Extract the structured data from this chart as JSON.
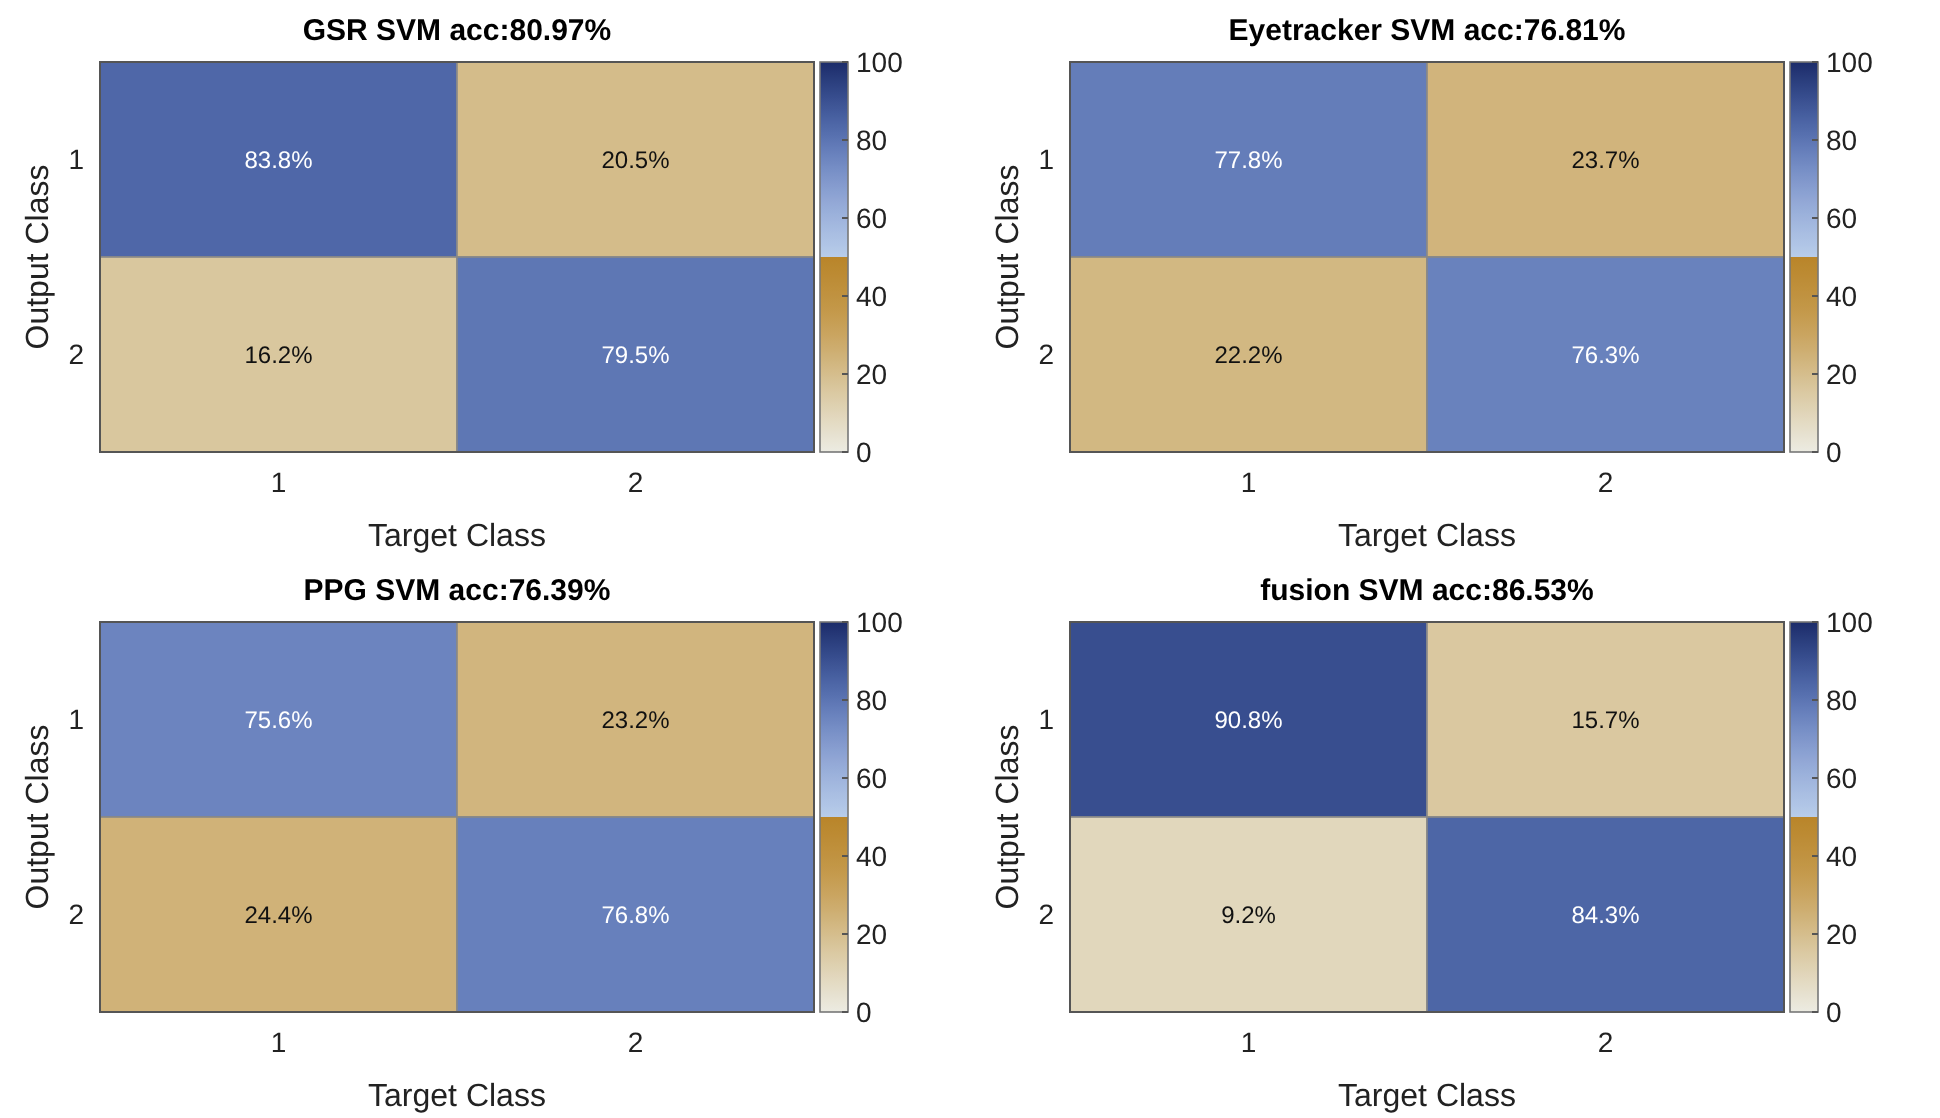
{
  "chart_data": [
    {
      "type": "heatmap",
      "title": "GSR SVM acc:80.97%",
      "xlabel": "Target Class",
      "ylabel": "Output Class",
      "categories": [
        "1",
        "2"
      ],
      "y_categories": [
        "1",
        "2"
      ],
      "cells": [
        [
          83.8,
          20.5
        ],
        [
          16.2,
          79.5
        ]
      ],
      "cell_labels": [
        [
          "83.8%",
          "20.5%"
        ],
        [
          "16.2%",
          "79.5%"
        ]
      ],
      "clim": [
        0,
        100
      ],
      "cticks": [
        0,
        20,
        40,
        60,
        80,
        100
      ]
    },
    {
      "type": "heatmap",
      "title": "Eyetracker SVM acc:76.81%",
      "xlabel": "Target Class",
      "ylabel": "Output Class",
      "categories": [
        "1",
        "2"
      ],
      "y_categories": [
        "1",
        "2"
      ],
      "cells": [
        [
          77.8,
          23.7
        ],
        [
          22.2,
          76.3
        ]
      ],
      "cell_labels": [
        [
          "77.8%",
          "23.7%"
        ],
        [
          "22.2%",
          "76.3%"
        ]
      ],
      "clim": [
        0,
        100
      ],
      "cticks": [
        0,
        20,
        40,
        60,
        80,
        100
      ]
    },
    {
      "type": "heatmap",
      "title": "PPG SVM acc:76.39%",
      "xlabel": "Target Class",
      "ylabel": "Output Class",
      "categories": [
        "1",
        "2"
      ],
      "y_categories": [
        "1",
        "2"
      ],
      "cells": [
        [
          75.6,
          23.2
        ],
        [
          24.4,
          76.8
        ]
      ],
      "cell_labels": [
        [
          "75.6%",
          "23.2%"
        ],
        [
          "24.4%",
          "76.8%"
        ]
      ],
      "clim": [
        0,
        100
      ],
      "cticks": [
        0,
        20,
        40,
        60,
        80,
        100
      ]
    },
    {
      "type": "heatmap",
      "title": "fusion SVM acc:86.53%",
      "xlabel": "Target Class",
      "ylabel": "Output Class",
      "categories": [
        "1",
        "2"
      ],
      "y_categories": [
        "1",
        "2"
      ],
      "cells": [
        [
          90.8,
          15.7
        ],
        [
          9.2,
          84.3
        ]
      ],
      "cell_labels": [
        [
          "90.8%",
          "15.7%"
        ],
        [
          "9.2%",
          "84.3%"
        ]
      ],
      "clim": [
        0,
        100
      ],
      "cticks": [
        0,
        20,
        40,
        60,
        80,
        100
      ]
    }
  ]
}
